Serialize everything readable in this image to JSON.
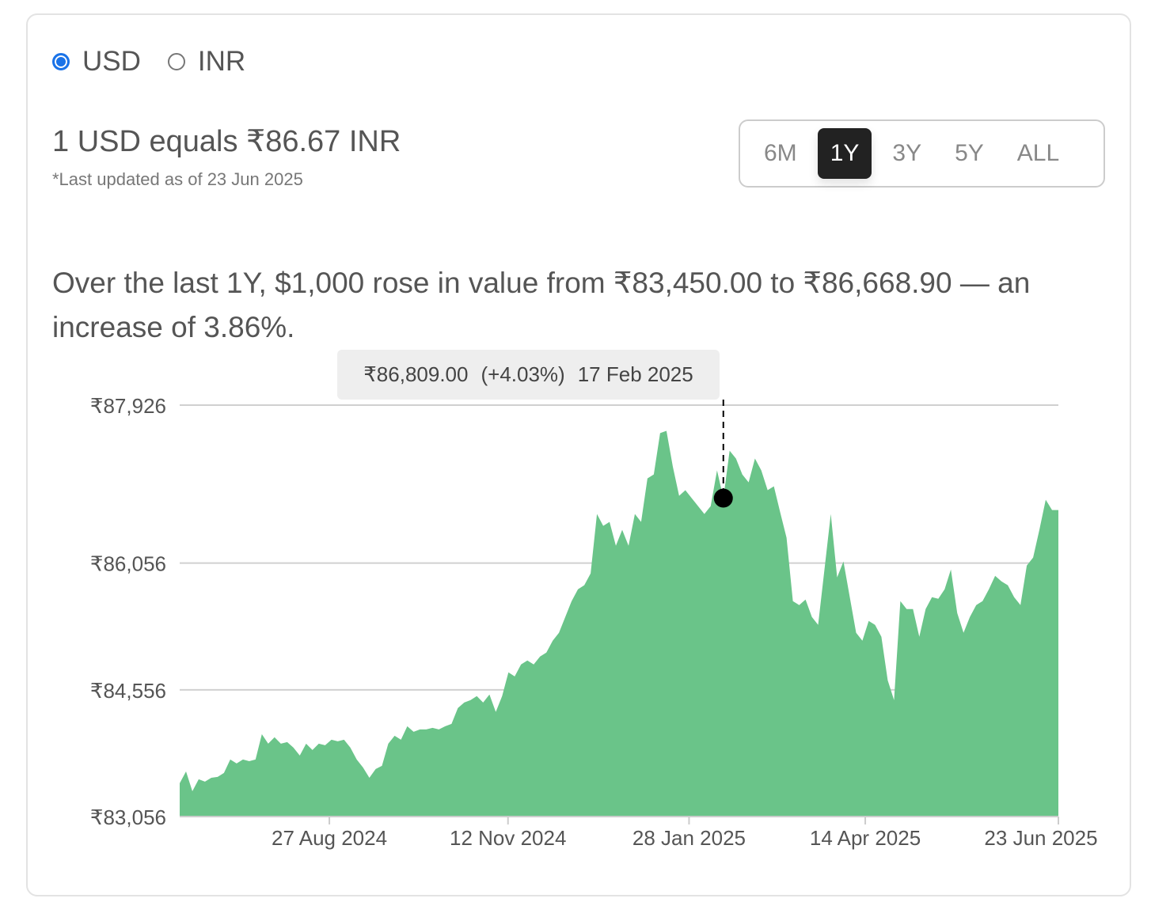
{
  "currency_toggle": {
    "options": [
      {
        "label": "USD",
        "selected": true
      },
      {
        "label": "INR",
        "selected": false
      }
    ]
  },
  "rate": {
    "text": "1 USD equals ₹86.67 INR",
    "updated": "*Last updated as of 23 Jun 2025"
  },
  "ranges": {
    "items": [
      "6M",
      "1Y",
      "3Y",
      "5Y",
      "ALL"
    ],
    "active": "1Y"
  },
  "summary": "Over the last 1Y, $1,000 rose in value from ₹83,450.00 to ₹86,668.90 — an increase of 3.86%.",
  "tooltip": {
    "value": "₹86,809.00",
    "change": "(+4.03%)",
    "date": "17 Feb 2025"
  },
  "colors": {
    "area": "#6ac489",
    "accent": "#1a73e8"
  },
  "chart_data": {
    "type": "area",
    "title": "",
    "xlabel": "",
    "ylabel": "",
    "x_days": 364,
    "ylim": [
      83056,
      87926
    ],
    "y_ticks": [
      {
        "value": 87926,
        "label": "₹87,926"
      },
      {
        "value": 86056,
        "label": "₹86,056"
      },
      {
        "value": 84556,
        "label": "₹84,556"
      },
      {
        "value": 83056,
        "label": "₹83,056"
      }
    ],
    "x_ticks": [
      {
        "day": 62,
        "label": "27 Aug 2024"
      },
      {
        "day": 136,
        "label": "12 Nov 2024"
      },
      {
        "day": 211,
        "label": "28 Jan 2025"
      },
      {
        "day": 284,
        "label": "14 Apr 2025"
      },
      {
        "day": 364,
        "label": "23 Jun 2025"
      }
    ],
    "hover_index": 86,
    "values": [
      83450,
      83590,
      83356,
      83497,
      83469,
      83515,
      83525,
      83572,
      83731,
      83684,
      83731,
      83712,
      83731,
      84031,
      83919,
      83994,
      83919,
      83937,
      83872,
      83778,
      83919,
      83844,
      83919,
      83900,
      83965,
      83947,
      83965,
      83872,
      83731,
      83637,
      83515,
      83619,
      83656,
      83919,
      84012,
      83965,
      84125,
      84059,
      84087,
      84087,
      84106,
      84087,
      84125,
      84153,
      84340,
      84406,
      84434,
      84481,
      84406,
      84500,
      84294,
      84481,
      84762,
      84715,
      84856,
      84903,
      84856,
      84950,
      84997,
      85137,
      85231,
      85419,
      85606,
      85747,
      85794,
      85934,
      86637,
      86497,
      86544,
      86262,
      86450,
      86262,
      86637,
      86544,
      87059,
      87106,
      87594,
      87622,
      87200,
      86853,
      86919,
      86825,
      86731,
      86637,
      86731,
      87153,
      86825,
      87387,
      87294,
      87106,
      87012,
      87294,
      87153,
      86919,
      86965,
      86656,
      86356,
      85606,
      85559,
      85625,
      85419,
      85325,
      85981,
      86637,
      85887,
      86075,
      85653,
      85231,
      85137,
      85372,
      85325,
      85184,
      84669,
      84434,
      85606,
      85512,
      85512,
      85184,
      85512,
      85653,
      85634,
      85747,
      85981,
      85465,
      85231,
      85419,
      85559,
      85606,
      85747,
      85906,
      85840,
      85794,
      85653,
      85559,
      86028,
      86122,
      86450,
      86806,
      86684,
      86684
    ]
  }
}
